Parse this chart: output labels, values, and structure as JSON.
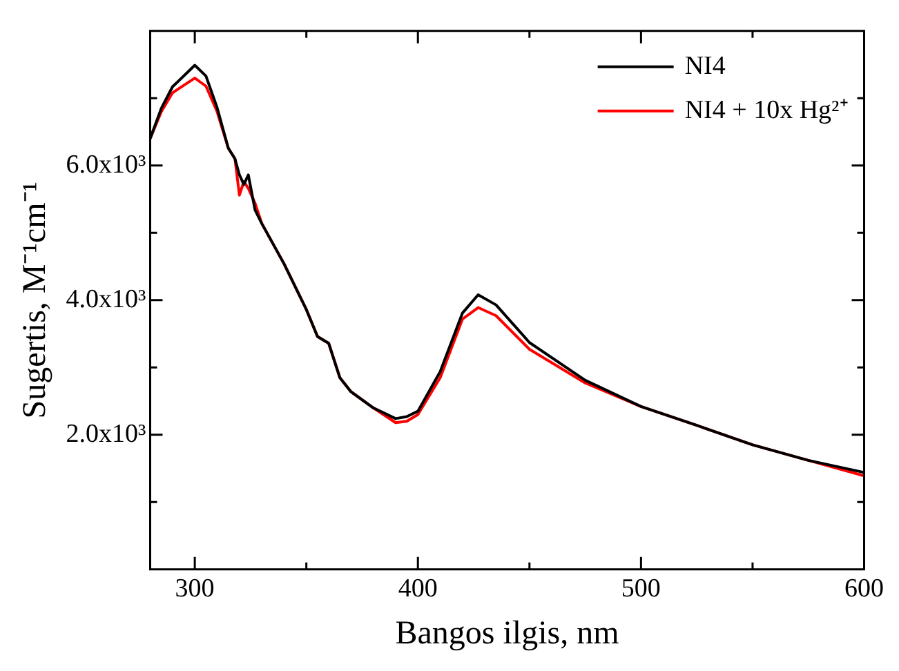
{
  "chart_data": {
    "type": "line",
    "xlabel": "Bangos ilgis, nm",
    "ylabel": "Sugertis, M⁻¹cm⁻¹",
    "x": [
      280,
      285,
      290,
      300,
      305,
      310,
      315,
      318,
      320,
      322,
      324,
      327,
      330,
      340,
      350,
      355,
      360,
      365,
      370,
      380,
      390,
      395,
      400,
      410,
      420,
      427,
      435,
      450,
      475,
      500,
      525,
      550,
      575,
      600
    ],
    "series": [
      {
        "name": "NI4",
        "color": "#000000",
        "values": [
          6400,
          6850,
          7170,
          7490,
          7330,
          6860,
          6260,
          6100,
          5860,
          5720,
          5860,
          5340,
          5140,
          4540,
          3860,
          3460,
          3360,
          2850,
          2640,
          2400,
          2240,
          2270,
          2350,
          2940,
          3810,
          4080,
          3930,
          3370,
          2810,
          2420,
          2140,
          1850,
          1620,
          1440
        ]
      },
      {
        "name": "NI4 + 10x Hg²⁺",
        "color": "#ff0000",
        "values": [
          6400,
          6800,
          7080,
          7300,
          7180,
          6800,
          6260,
          6100,
          5560,
          5760,
          5660,
          5440,
          5140,
          4540,
          3860,
          3460,
          3360,
          2850,
          2640,
          2400,
          2180,
          2200,
          2300,
          2850,
          3720,
          3890,
          3770,
          3270,
          2770,
          2420,
          2140,
          1850,
          1620,
          1390
        ]
      }
    ],
    "xlim": [
      280,
      600
    ],
    "xticks": [
      300,
      {
        "value": 350,
        "label": null
      },
      400,
      {
        "value": 450,
        "label": null
      },
      500,
      {
        "value": 550,
        "label": null
      },
      600
    ],
    "ylim": [
      0,
      8000
    ],
    "yticks": [
      {
        "value": 1000,
        "label": null
      },
      {
        "value": 2000,
        "label": "2.0x10³"
      },
      {
        "value": 3000,
        "label": null
      },
      {
        "value": 4000,
        "label": "4.0x10³"
      },
      {
        "value": 5000,
        "label": null
      },
      {
        "value": 6000,
        "label": "6.0x10³"
      },
      {
        "value": 7000,
        "label": null
      }
    ],
    "legend": "top right",
    "grid": false,
    "marker": "none",
    "line_style": "solid"
  }
}
